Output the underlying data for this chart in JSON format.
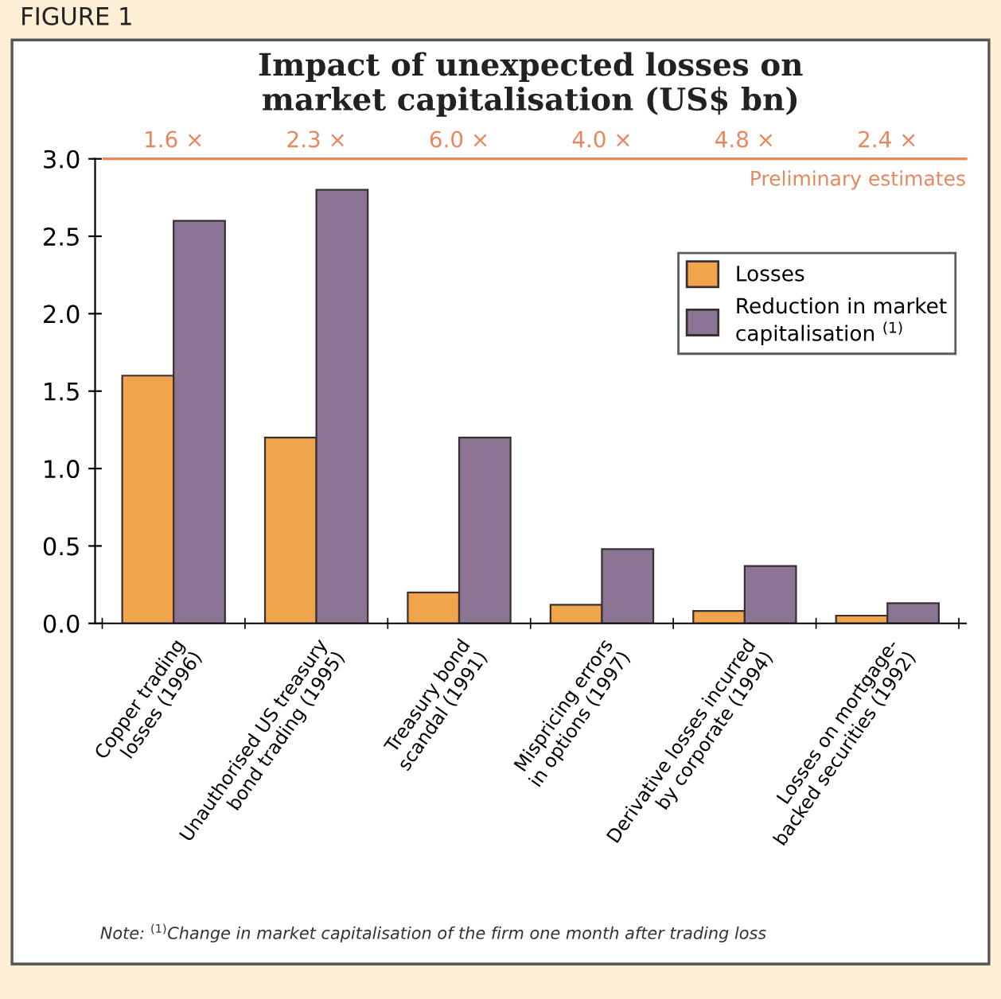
{
  "chart_data": {
    "type": "bar",
    "title": "Impact of unexpected losses on\nmarket capitalisation (US$ bn)",
    "categories": [
      "Copper trading\nlosses (1996)",
      "Unauthorised US treasury\nbond trading (1995)",
      "Treasury bond\nscandal (1991)",
      "Mispricing errors\nin options (1997)",
      "Derivative losses incurred\nby corporate (1994)",
      "Losses on mortgage-\nbacked securities (1992)"
    ],
    "series": [
      {
        "name": "Losses",
        "color": "#f0a54c",
        "values": [
          1.6,
          1.2,
          0.2,
          0.12,
          0.08,
          0.05
        ]
      },
      {
        "name": "Reduction in market\ncapitalisation $^{(1)}$",
        "color": "#8c7494",
        "values": [
          2.6,
          2.8,
          1.2,
          0.48,
          0.37,
          0.13
        ]
      }
    ],
    "ylim": [
      0,
      3.0
    ],
    "yticks": [
      {
        "value": 0,
        "label": "0.0"
      },
      0.5,
      {
        "value": 1,
        "label": "1.0"
      },
      1.5,
      {
        "value": 2,
        "label": "2.0"
      },
      2.5,
      {
        "value": 3,
        "label": "3.0"
      }
    ],
    "ref_lines": [
      {
        "axis": "y",
        "value": 3.0,
        "color": "#e8865e"
      }
    ],
    "legend": "top right",
    "grid": false,
    "annotations": [
      "1.6 ×",
      "2.3 ×",
      "6.0 ×",
      "4.0 ×",
      "4.8 ×",
      "2.4 ×",
      "Preliminary estimates",
      "Note: $^{(1)}$Change in market capitalisation of the firm one month after trading loss",
      "FIGURE 1"
    ]
  }
}
